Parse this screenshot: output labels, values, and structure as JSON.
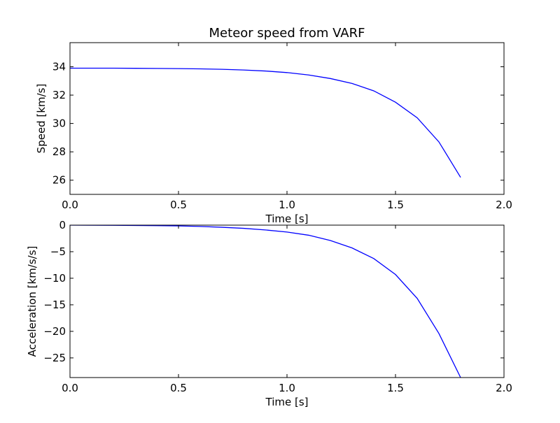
{
  "chart_data": [
    {
      "type": "line",
      "title": "Meteor speed from  VARF",
      "xlabel": "Time [s]",
      "ylabel": "Speed [km/s]",
      "xlim": [
        0.0,
        2.0
      ],
      "ylim": [
        25.0,
        35.7
      ],
      "x_ticks": [
        0.0,
        0.5,
        1.0,
        1.5,
        2.0
      ],
      "x_tick_labels": [
        "0.0",
        "0.5",
        "1.0",
        "1.5",
        "2.0"
      ],
      "y_ticks": [
        26,
        28,
        30,
        32,
        34
      ],
      "y_tick_labels": [
        "26",
        "28",
        "30",
        "32",
        "34"
      ],
      "grid": false,
      "series": [
        {
          "color": "#0000ff",
          "x": [
            0.0,
            0.1,
            0.2,
            0.3,
            0.4,
            0.5,
            0.6,
            0.7,
            0.8,
            0.9,
            1.0,
            1.1,
            1.2,
            1.3,
            1.4,
            1.5,
            1.6,
            1.7,
            1.8
          ],
          "y": [
            33.9,
            33.9,
            33.9,
            33.89,
            33.88,
            33.87,
            33.85,
            33.82,
            33.77,
            33.7,
            33.59,
            33.42,
            33.17,
            32.82,
            32.3,
            31.5,
            30.4,
            28.7,
            26.2
          ]
        }
      ]
    },
    {
      "type": "line",
      "title": "",
      "xlabel": "Time [s]",
      "ylabel": "Acceleration [km/s/s]",
      "xlim": [
        0.0,
        2.0
      ],
      "ylim": [
        -28.7,
        0.0
      ],
      "x_ticks": [
        0.0,
        0.5,
        1.0,
        1.5,
        2.0
      ],
      "x_tick_labels": [
        "0.0",
        "0.5",
        "1.0",
        "1.5",
        "2.0"
      ],
      "y_ticks": [
        0,
        -5,
        -10,
        -15,
        -20,
        -25
      ],
      "y_tick_labels": [
        "0",
        "−5",
        "−10",
        "−15",
        "−20",
        "−25"
      ],
      "grid": false,
      "series": [
        {
          "color": "#0000ff",
          "x": [
            0.0,
            0.1,
            0.2,
            0.3,
            0.4,
            0.5,
            0.6,
            0.7,
            0.8,
            0.9,
            1.0,
            1.1,
            1.2,
            1.3,
            1.4,
            1.5,
            1.6,
            1.7,
            1.8
          ],
          "y": [
            0.0,
            -0.01,
            -0.03,
            -0.06,
            -0.1,
            -0.15,
            -0.25,
            -0.4,
            -0.6,
            -0.9,
            -1.3,
            -1.9,
            -2.9,
            -4.3,
            -6.3,
            -9.3,
            -13.8,
            -20.4,
            -28.7
          ]
        }
      ]
    }
  ]
}
